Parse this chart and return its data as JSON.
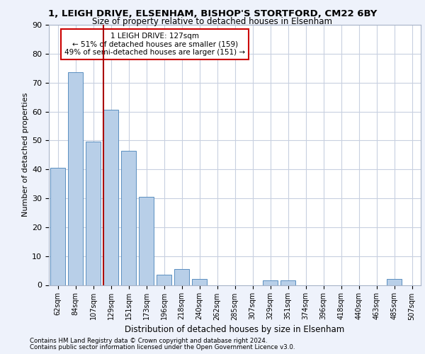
{
  "title1": "1, LEIGH DRIVE, ELSENHAM, BISHOP'S STORTFORD, CM22 6BY",
  "title2": "Size of property relative to detached houses in Elsenham",
  "xlabel": "Distribution of detached houses by size in Elsenham",
  "ylabel": "Number of detached properties",
  "categories": [
    "62sqm",
    "84sqm",
    "107sqm",
    "129sqm",
    "151sqm",
    "173sqm",
    "196sqm",
    "218sqm",
    "240sqm",
    "262sqm",
    "285sqm",
    "307sqm",
    "329sqm",
    "351sqm",
    "374sqm",
    "396sqm",
    "418sqm",
    "440sqm",
    "463sqm",
    "485sqm",
    "507sqm"
  ],
  "values": [
    40.5,
    73.5,
    49.5,
    60.5,
    46.5,
    30.5,
    3.5,
    5.5,
    2.0,
    0,
    0,
    0,
    1.5,
    1.5,
    0,
    0,
    0,
    0,
    0,
    2.0,
    0
  ],
  "bar_color": "#b8cfe8",
  "bar_edge_color": "#5a8fc0",
  "vline_color": "#aa0000",
  "annotation_text": "1 LEIGH DRIVE: 127sqm\n← 51% of detached houses are smaller (159)\n49% of semi-detached houses are larger (151) →",
  "annotation_box_color": "#ffffff",
  "annotation_box_edge_color": "#cc0000",
  "ylim": [
    0,
    90
  ],
  "yticks": [
    0,
    10,
    20,
    30,
    40,
    50,
    60,
    70,
    80,
    90
  ],
  "footnote1": "Contains HM Land Registry data © Crown copyright and database right 2024.",
  "footnote2": "Contains public sector information licensed under the Open Government Licence v3.0.",
  "bg_color": "#eef2fb",
  "plot_bg_color": "#ffffff",
  "grid_color": "#c8d0e0"
}
